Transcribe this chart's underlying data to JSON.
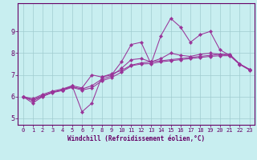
{
  "title": "",
  "xlabel": "Windchill (Refroidissement éolien,°C)",
  "ylabel": "",
  "bg_color": "#c8eef0",
  "line_color": "#993399",
  "grid_color": "#a0ccd0",
  "axis_color": "#660066",
  "tick_color": "#660066",
  "xlim": [
    -0.5,
    23.5
  ],
  "ylim": [
    4.7,
    10.3
  ],
  "xticks": [
    0,
    1,
    2,
    3,
    4,
    5,
    6,
    7,
    8,
    9,
    10,
    11,
    12,
    13,
    14,
    15,
    16,
    17,
    18,
    19,
    20,
    21,
    22,
    23
  ],
  "yticks": [
    5,
    6,
    7,
    8,
    9
  ],
  "series": [
    [
      6.0,
      5.7,
      6.0,
      6.2,
      6.3,
      6.5,
      6.4,
      7.0,
      6.9,
      7.0,
      7.6,
      8.4,
      8.5,
      7.5,
      8.8,
      9.6,
      9.2,
      8.5,
      8.85,
      9.0,
      8.15,
      7.9,
      7.5,
      7.25
    ],
    [
      6.0,
      5.9,
      6.1,
      6.25,
      6.35,
      6.5,
      5.3,
      5.7,
      6.9,
      7.05,
      7.2,
      7.45,
      7.55,
      7.6,
      7.65,
      7.7,
      7.75,
      7.8,
      7.85,
      7.9,
      7.95,
      7.95,
      7.5,
      7.25
    ],
    [
      6.0,
      5.85,
      6.05,
      6.2,
      6.3,
      6.45,
      6.35,
      6.5,
      6.8,
      6.95,
      7.3,
      7.7,
      7.75,
      7.6,
      7.75,
      8.0,
      7.9,
      7.85,
      7.95,
      8.0,
      7.95,
      7.9,
      7.5,
      7.25
    ],
    [
      6.0,
      5.8,
      6.02,
      6.18,
      6.28,
      6.42,
      6.3,
      6.4,
      6.72,
      6.88,
      7.12,
      7.42,
      7.5,
      7.52,
      7.6,
      7.65,
      7.7,
      7.75,
      7.8,
      7.85,
      7.88,
      7.88,
      7.48,
      7.22
    ]
  ],
  "tick_fontsize": 5.0,
  "xlabel_fontsize": 5.5,
  "marker_size": 2.2,
  "linewidth": 0.75
}
